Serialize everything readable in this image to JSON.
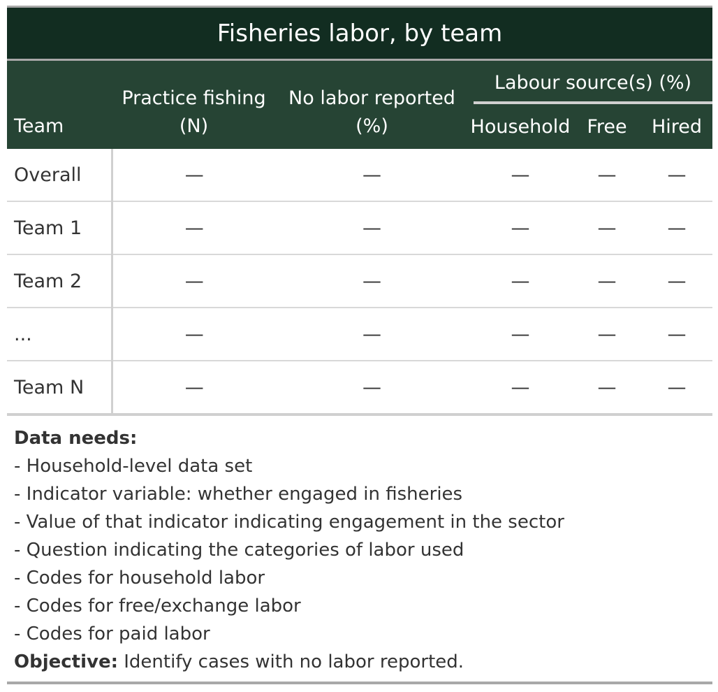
{
  "title": "Fisheries labor, by team",
  "header": {
    "team": "Team",
    "practice_line1": "Practice fishing",
    "practice_line2": "(N)",
    "nolabor_line1": "No labor reported",
    "nolabor_line2": "(%)",
    "source_span": "Labour source(s) (%)",
    "household": "Household",
    "free": "Free",
    "hired": "Hired"
  },
  "rows": [
    {
      "team": "Overall",
      "practice": "—",
      "nolabor": "—",
      "household": "—",
      "free": "—",
      "hired": "—"
    },
    {
      "team": "Team 1",
      "practice": "—",
      "nolabor": "—",
      "household": "—",
      "free": "—",
      "hired": "—"
    },
    {
      "team": "Team 2",
      "practice": "—",
      "nolabor": "—",
      "household": "—",
      "free": "—",
      "hired": "—"
    },
    {
      "team": "...",
      "practice": "—",
      "nolabor": "—",
      "household": "—",
      "free": "—",
      "hired": "—"
    },
    {
      "team": "Team N",
      "practice": "—",
      "nolabor": "—",
      "household": "—",
      "free": "—",
      "hired": "—"
    }
  ],
  "notes": {
    "data_needs_label": "Data needs:",
    "items": [
      "- Household-level data set",
      "- Indicator variable: whether engaged in fisheries",
      "- Value of that indicator indicating engagement in the sector",
      "- Question indicating the categories of labor used",
      "- Codes for household labor",
      "- Codes for free/exchange labor",
      "- Codes for paid labor"
    ],
    "objective_label": "Objective:",
    "objective_text": " Identify cases with no labor reported."
  }
}
